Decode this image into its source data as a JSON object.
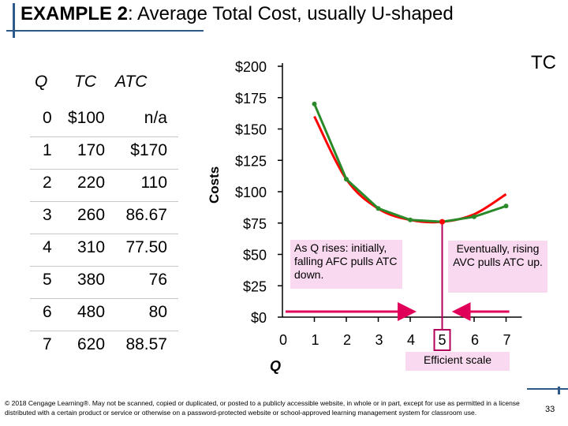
{
  "title": {
    "prefix": "EXAMPLE 2",
    "text": ":  Average Total Cost, usually U-shaped"
  },
  "table": {
    "headers": {
      "q": "Q",
      "tc": "TC",
      "atc": "ATC"
    },
    "rows": [
      {
        "q": "0",
        "tc": "$100",
        "atc": "n/a"
      },
      {
        "q": "1",
        "tc": "170",
        "atc": "$170"
      },
      {
        "q": "2",
        "tc": "220",
        "atc": "110"
      },
      {
        "q": "3",
        "tc": "260",
        "atc": "86.67"
      },
      {
        "q": "4",
        "tc": "310",
        "atc": "77.50"
      },
      {
        "q": "5",
        "tc": "380",
        "atc": "76"
      },
      {
        "q": "6",
        "tc": "480",
        "atc": "80"
      },
      {
        "q": "7",
        "tc": "620",
        "atc": "88.57"
      }
    ]
  },
  "chart_data": {
    "type": "line",
    "ylabel": "Costs",
    "xlabel": "Q",
    "ylim": [
      0,
      200
    ],
    "xlim": [
      0,
      7
    ],
    "yticks": [
      {
        "value": 0,
        "label": "$0"
      },
      {
        "value": 25,
        "label": "$25"
      },
      {
        "value": 50,
        "label": "$50"
      },
      {
        "value": 75,
        "label": "$75"
      },
      {
        "value": 100,
        "label": "$100"
      },
      {
        "value": 125,
        "label": "$125"
      },
      {
        "value": 150,
        "label": "$150"
      },
      {
        "value": 175,
        "label": "$175"
      },
      {
        "value": 200,
        "label": "$200"
      }
    ],
    "xticks": [
      "0",
      "1",
      "2",
      "3",
      "4",
      "5",
      "6",
      "7"
    ],
    "series": [
      {
        "name": "ATC",
        "points": [
          [
            1,
            170
          ],
          [
            2,
            110
          ],
          [
            3,
            86.67
          ],
          [
            4,
            77.5
          ],
          [
            5,
            76
          ],
          [
            6,
            80
          ],
          [
            7,
            88.57
          ]
        ]
      }
    ],
    "smooth_curve_points": [
      [
        1,
        160
      ],
      [
        2,
        110
      ],
      [
        3,
        86.5
      ],
      [
        4,
        77.5
      ],
      [
        5,
        76
      ],
      [
        6,
        82
      ],
      [
        7,
        98
      ]
    ],
    "efficient_scale_q": 5,
    "colors": {
      "atc_line": "#2a8a2a",
      "curve": "#ff0000",
      "arrow": "#e0005a",
      "marker_line": "#b4005a",
      "axis": "#000000"
    }
  },
  "annotations": {
    "tc_label": "TC",
    "note1": "As Q rises: initially, falling AFC pulls ATC down.",
    "note2": "Eventually, rising AVC pulls ATC up.",
    "efficient_scale_label": "Efficient scale",
    "efficient_scale_box_label": "5"
  },
  "footer": {
    "text": "© 2018 Cengage Learning®. May not be scanned, copied or duplicated, or posted to a publicly accessible website, in whole or in part, except for use as permitted in a license distributed with a certain product or service or otherwise on a password-protected website or school-approved learning management system for classroom use.",
    "page_number": "33"
  }
}
